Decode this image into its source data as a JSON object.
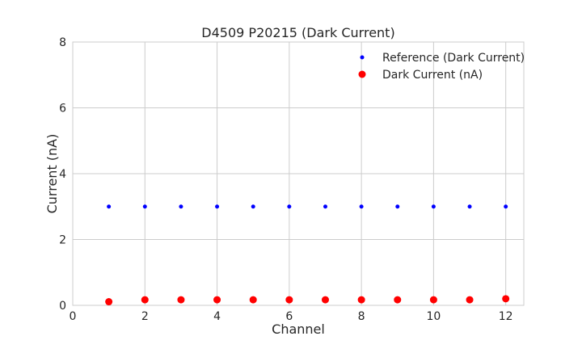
{
  "chart_data": {
    "type": "scatter",
    "title": "D4509 P20215 (Dark Current)",
    "xlabel": "Channel",
    "ylabel": "Current (nA)",
    "xlim": [
      0,
      12.5
    ],
    "ylim": [
      0,
      8
    ],
    "xticks": [
      0,
      2,
      4,
      6,
      8,
      10,
      12
    ],
    "yticks": [
      0,
      2,
      4,
      6,
      8
    ],
    "grid": true,
    "legend_position": "top-right",
    "x": [
      1,
      2,
      3,
      4,
      5,
      6,
      7,
      8,
      9,
      10,
      11,
      12
    ],
    "series": [
      {
        "name": "Reference (Dark Current)",
        "color": "#0000ff",
        "marker_size": "small",
        "values": [
          3,
          3,
          3,
          3,
          3,
          3,
          3,
          3,
          3,
          3,
          3,
          3
        ]
      },
      {
        "name": "Dark Current (nA)",
        "color": "#ff0000",
        "marker_size": "large",
        "values": [
          0.11,
          0.17,
          0.17,
          0.17,
          0.17,
          0.17,
          0.17,
          0.17,
          0.17,
          0.17,
          0.17,
          0.2
        ]
      }
    ]
  }
}
